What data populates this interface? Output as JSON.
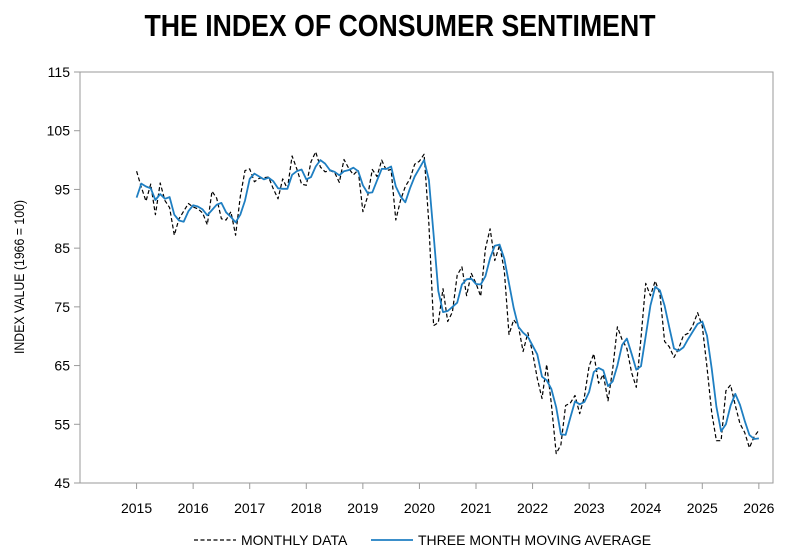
{
  "chart_data": {
    "type": "line",
    "title": "THE INDEX OF CONSUMER SENTIMENT",
    "ylabel": "INDEX VALUE (1966 = 100)",
    "xlabel": "",
    "ylim": [
      45,
      115
    ],
    "yticks": [
      45,
      55,
      65,
      75,
      85,
      95,
      105,
      115
    ],
    "xlim": [
      2014,
      2026.25
    ],
    "xticks": [
      2015,
      2016,
      2017,
      2018,
      2019,
      2020,
      2021,
      2022,
      2023,
      2024,
      2025,
      2026
    ],
    "grid": false,
    "legend_position": "bottom",
    "colors": {
      "monthly": "#000000",
      "moving_average": "#1f7fc2"
    },
    "series": [
      {
        "name": "MONTHLY DATA",
        "style": "dashed",
        "x": [
          2015.0,
          2015.083,
          2015.167,
          2015.25,
          2015.333,
          2015.417,
          2015.5,
          2015.583,
          2015.667,
          2015.75,
          2015.833,
          2015.917,
          2016.0,
          2016.083,
          2016.167,
          2016.25,
          2016.333,
          2016.417,
          2016.5,
          2016.583,
          2016.667,
          2016.75,
          2016.833,
          2016.917,
          2017.0,
          2017.083,
          2017.167,
          2017.25,
          2017.333,
          2017.417,
          2017.5,
          2017.583,
          2017.667,
          2017.75,
          2017.833,
          2017.917,
          2018.0,
          2018.083,
          2018.167,
          2018.25,
          2018.333,
          2018.417,
          2018.5,
          2018.583,
          2018.667,
          2018.75,
          2018.833,
          2018.917,
          2019.0,
          2019.083,
          2019.167,
          2019.25,
          2019.333,
          2019.417,
          2019.5,
          2019.583,
          2019.667,
          2019.75,
          2019.833,
          2019.917,
          2020.0,
          2020.083,
          2020.167,
          2020.25,
          2020.333,
          2020.417,
          2020.5,
          2020.583,
          2020.667,
          2020.75,
          2020.833,
          2020.917,
          2021.0,
          2021.083,
          2021.167,
          2021.25,
          2021.333,
          2021.417,
          2021.5,
          2021.583,
          2021.667,
          2021.75,
          2021.833,
          2021.917,
          2022.0,
          2022.083,
          2022.167,
          2022.25,
          2022.333,
          2022.417,
          2022.5,
          2022.583,
          2022.667,
          2022.75,
          2022.833,
          2022.917,
          2023.0,
          2023.083,
          2023.167,
          2023.25,
          2023.333,
          2023.417,
          2023.5,
          2023.583,
          2023.667,
          2023.75,
          2023.833,
          2023.917,
          2024.0,
          2024.083,
          2024.167,
          2024.25,
          2024.333,
          2024.417,
          2024.5,
          2024.583,
          2024.667,
          2024.75,
          2024.833,
          2024.917,
          2025.0,
          2025.083,
          2025.167,
          2025.25,
          2025.333,
          2025.417,
          2025.5,
          2025.583,
          2025.667,
          2025.75,
          2025.833,
          2025.917,
          2026.0
        ],
        "values": [
          98.1,
          95.4,
          93.0,
          95.9,
          90.7,
          96.1,
          93.1,
          91.9,
          87.2,
          90.0,
          91.3,
          92.6,
          92.0,
          91.7,
          91.0,
          89.0,
          94.7,
          93.5,
          90.0,
          89.8,
          91.2,
          87.2,
          93.8,
          98.2,
          98.5,
          96.3,
          96.9,
          97.0,
          97.1,
          95.1,
          93.4,
          96.8,
          95.1,
          100.7,
          98.5,
          95.9,
          95.7,
          99.7,
          101.4,
          98.8,
          98.0,
          98.2,
          97.9,
          96.2,
          100.1,
          98.6,
          97.5,
          98.3,
          91.2,
          93.8,
          98.4,
          97.2,
          100.0,
          98.2,
          98.4,
          89.8,
          93.2,
          95.5,
          96.8,
          99.3,
          99.8,
          101.0,
          89.1,
          71.8,
          72.3,
          78.1,
          72.5,
          74.1,
          80.4,
          81.8,
          76.9,
          80.7,
          79.0,
          76.8,
          84.9,
          88.3,
          82.9,
          85.5,
          81.2,
          70.3,
          72.8,
          71.7,
          67.4,
          70.6,
          67.2,
          62.8,
          59.4,
          65.2,
          58.4,
          50.0,
          51.5,
          58.2,
          58.6,
          59.9,
          56.8,
          59.7,
          64.9,
          67.0,
          62.0,
          63.5,
          59.0,
          64.4,
          71.6,
          69.4,
          67.9,
          63.8,
          61.3,
          69.7,
          79.0,
          76.9,
          79.4,
          77.2,
          69.1,
          68.2,
          66.4,
          67.9,
          70.1,
          70.5,
          71.8,
          74.0,
          71.7,
          64.7,
          57.0,
          52.2,
          52.2,
          60.7,
          61.7,
          58.2,
          55.1,
          53.6,
          51.0,
          52.9,
          54.0
        ]
      },
      {
        "name": "THREE MONTH MOVING AVERAGE",
        "style": "solid",
        "x": [
          2015.0,
          2015.083,
          2015.167,
          2015.25,
          2015.333,
          2015.417,
          2015.5,
          2015.583,
          2015.667,
          2015.75,
          2015.833,
          2015.917,
          2016.0,
          2016.083,
          2016.167,
          2016.25,
          2016.333,
          2016.417,
          2016.5,
          2016.583,
          2016.667,
          2016.75,
          2016.833,
          2016.917,
          2017.0,
          2017.083,
          2017.167,
          2017.25,
          2017.333,
          2017.417,
          2017.5,
          2017.583,
          2017.667,
          2017.75,
          2017.833,
          2017.917,
          2018.0,
          2018.083,
          2018.167,
          2018.25,
          2018.333,
          2018.417,
          2018.5,
          2018.583,
          2018.667,
          2018.75,
          2018.833,
          2018.917,
          2019.0,
          2019.083,
          2019.167,
          2019.25,
          2019.333,
          2019.417,
          2019.5,
          2019.583,
          2019.667,
          2019.75,
          2019.833,
          2019.917,
          2020.0,
          2020.083,
          2020.167,
          2020.25,
          2020.333,
          2020.417,
          2020.5,
          2020.583,
          2020.667,
          2020.75,
          2020.833,
          2020.917,
          2021.0,
          2021.083,
          2021.167,
          2021.25,
          2021.333,
          2021.417,
          2021.5,
          2021.583,
          2021.667,
          2021.75,
          2021.833,
          2021.917,
          2022.0,
          2022.083,
          2022.167,
          2022.25,
          2022.333,
          2022.417,
          2022.5,
          2022.583,
          2022.667,
          2022.75,
          2022.833,
          2022.917,
          2023.0,
          2023.083,
          2023.167,
          2023.25,
          2023.333,
          2023.417,
          2023.5,
          2023.583,
          2023.667,
          2023.75,
          2023.833,
          2023.917,
          2024.0,
          2024.083,
          2024.167,
          2024.25,
          2024.333,
          2024.417,
          2024.5,
          2024.583,
          2024.667,
          2024.75,
          2024.833,
          2024.917,
          2025.0,
          2025.083,
          2025.167,
          2025.25,
          2025.333,
          2025.417,
          2025.5,
          2025.583,
          2025.667,
          2025.75,
          2025.833,
          2025.917,
          2026.0
        ],
        "values": [
          93.6,
          96.0,
          95.5,
          95.2,
          93.2,
          94.2,
          93.4,
          93.7,
          90.7,
          89.7,
          89.5,
          91.3,
          92.3,
          92.1,
          91.6,
          90.6,
          91.5,
          92.4,
          92.7,
          91.1,
          90.3,
          89.4,
          90.7,
          93.1,
          96.8,
          97.7,
          97.2,
          96.7,
          97.0,
          96.4,
          95.2,
          95.1,
          95.1,
          97.5,
          98.1,
          98.4,
          96.7,
          97.1,
          98.9,
          100.0,
          99.4,
          98.3,
          98.0,
          97.4,
          98.1,
          98.3,
          98.7,
          98.1,
          95.7,
          94.4,
          94.5,
          96.5,
          98.5,
          98.5,
          98.9,
          95.5,
          93.8,
          92.8,
          95.2,
          97.2,
          98.6,
          100.0,
          96.6,
          87.3,
          77.7,
          74.1,
          74.3,
          75.0,
          75.7,
          78.8,
          79.7,
          79.8,
          78.9,
          78.8,
          80.2,
          83.3,
          85.4,
          85.6,
          83.2,
          79.0,
          74.8,
          71.6,
          70.6,
          69.9,
          68.4,
          66.9,
          63.1,
          62.5,
          61.0,
          57.9,
          53.3,
          53.2,
          56.1,
          58.9,
          58.4,
          58.8,
          60.5,
          63.9,
          64.6,
          64.2,
          61.5,
          62.3,
          65.0,
          68.5,
          69.6,
          67.0,
          64.3,
          64.9,
          70.0,
          75.2,
          78.4,
          77.8,
          75.2,
          71.5,
          67.9,
          67.5,
          68.1,
          69.5,
          70.8,
          72.1,
          72.5,
          70.1,
          64.5,
          58.0,
          53.8,
          55.0,
          58.2,
          60.2,
          58.3,
          55.6,
          53.2,
          52.5,
          52.6
        ]
      }
    ]
  }
}
